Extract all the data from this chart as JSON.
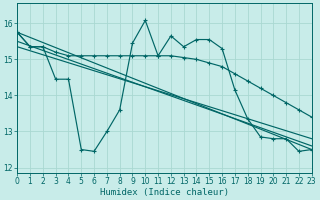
{
  "background_color": "#c8ece9",
  "grid_color": "#aad8d2",
  "line_color": "#006666",
  "xlabel": "Humidex (Indice chaleur)",
  "xlim": [
    0,
    23
  ],
  "ylim": [
    11.85,
    16.55
  ],
  "yticks": [
    12,
    13,
    14,
    15,
    16
  ],
  "xticks": [
    0,
    1,
    2,
    3,
    4,
    5,
    6,
    7,
    8,
    9,
    10,
    11,
    12,
    13,
    14,
    15,
    16,
    17,
    18,
    19,
    20,
    21,
    22,
    23
  ],
  "line_flat_x": [
    0,
    1,
    2,
    3,
    4,
    5,
    6,
    7,
    8,
    9,
    10,
    11,
    12,
    13,
    14,
    15,
    16,
    17,
    18,
    19,
    20,
    21,
    22,
    23
  ],
  "line_flat_y": [
    15.75,
    15.35,
    15.35,
    15.2,
    15.1,
    15.1,
    15.1,
    15.1,
    15.1,
    15.1,
    15.1,
    15.1,
    15.1,
    15.05,
    15.0,
    14.9,
    14.8,
    14.6,
    14.4,
    14.2,
    14.0,
    13.8,
    13.6,
    13.4
  ],
  "line_jagged_x": [
    0,
    1,
    2,
    3,
    4,
    5,
    6,
    7,
    8,
    9,
    10,
    11,
    12,
    13,
    14,
    15,
    16,
    17,
    18,
    19,
    20,
    21,
    22,
    23
  ],
  "line_jagged_y": [
    15.75,
    15.35,
    15.35,
    14.45,
    14.45,
    12.5,
    12.45,
    13.0,
    13.6,
    15.45,
    16.08,
    15.1,
    15.65,
    15.35,
    15.55,
    15.55,
    15.3,
    14.15,
    13.35,
    12.85,
    12.8,
    12.8,
    12.45,
    12.5
  ],
  "line_trend1_x": [
    0,
    23
  ],
  "line_trend1_y": [
    15.75,
    12.5
  ],
  "line_trend2_x": [
    0,
    23
  ],
  "line_trend2_y": [
    15.5,
    12.6
  ],
  "line_trend3_x": [
    0,
    23
  ],
  "line_trend3_y": [
    15.35,
    12.8
  ]
}
